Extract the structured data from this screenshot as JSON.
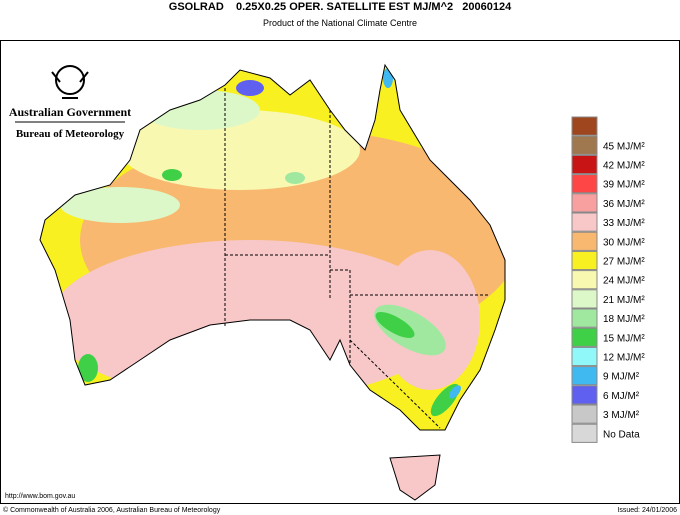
{
  "header": {
    "title": "GSOLRAD    0.25X0.25 OPER. SATELLITE EST MJ/M^2   20060124",
    "subtitle": "Product of the National Climate Centre"
  },
  "logo": {
    "government": "Australian Government",
    "bureau": "Bureau of Meteorology"
  },
  "legend": [
    {
      "label": "",
      "color": "#a0461e"
    },
    {
      "label": "45 MJ/M²",
      "color": "#a07850"
    },
    {
      "label": "42 MJ/M²",
      "color": "#c81414"
    },
    {
      "label": "39 MJ/M²",
      "color": "#ff4646"
    },
    {
      "label": "36 MJ/M²",
      "color": "#f8a0a0"
    },
    {
      "label": "33 MJ/M²",
      "color": "#f8c8c8"
    },
    {
      "label": "30 MJ/M²",
      "color": "#f8b870"
    },
    {
      "label": "27 MJ/M²",
      "color": "#f8f020"
    },
    {
      "label": "24 MJ/M²",
      "color": "#f8f8b0"
    },
    {
      "label": "21 MJ/M²",
      "color": "#dcf8c8"
    },
    {
      "label": "18 MJ/M²",
      "color": "#a0e8a0"
    },
    {
      "label": "15 MJ/M²",
      "color": "#40d048"
    },
    {
      "label": "12 MJ/M²",
      "color": "#90f8f8"
    },
    {
      "label": "9 MJ/M²",
      "color": "#40b8f0"
    },
    {
      "label": "6 MJ/M²",
      "color": "#6060f0"
    },
    {
      "label": "3 MJ/M²",
      "color": "#c8c8c8"
    },
    {
      "label": "No Data",
      "color": "#d8d8d8"
    }
  ],
  "footer": {
    "url": "http://www.bom.gov.au",
    "copyright": "© Commonwealth of Australia 2006, Australian Bureau of Meteorology",
    "issued": "Issued: 24/01/2006"
  }
}
